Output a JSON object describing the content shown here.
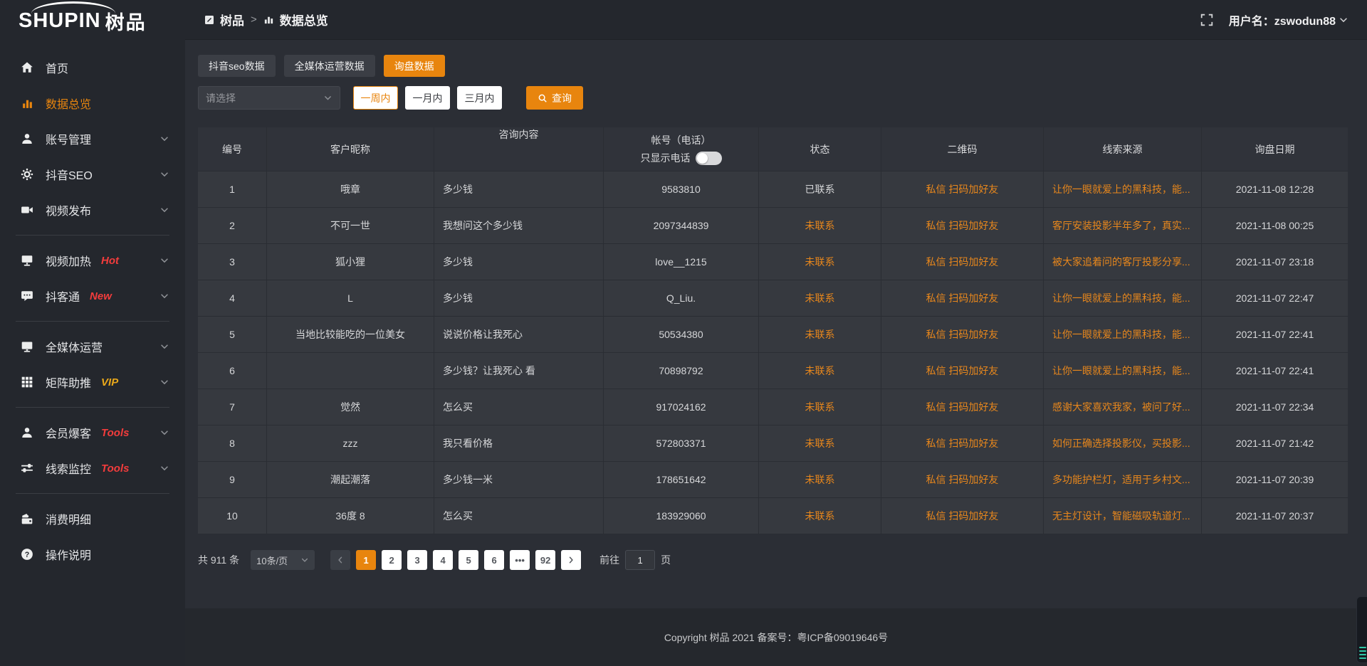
{
  "colors": {
    "accent": "#e8850e",
    "link": "#e8871c",
    "badge_red": "#f23c3c",
    "badge_vip": "#e9a81a",
    "status_pending": "#e8871c",
    "page_bg": "#2b2e35",
    "sidebar_bg": "#24272d",
    "row_bg": "#36393f"
  },
  "brand": {
    "logo_en": "SHUPIN",
    "logo_cn": "树品"
  },
  "header": {
    "breadcrumb": [
      "树品",
      "数据总览"
    ],
    "separator": ">",
    "username": "用户名：zswodun88"
  },
  "sidebar": {
    "items": [
      {
        "label": "首页",
        "icon": "home-icon"
      },
      {
        "label": "数据总览",
        "icon": "chart-bar-icon",
        "active": true
      },
      {
        "label": "账号管理",
        "icon": "user-icon",
        "chevron": true
      },
      {
        "label": "抖音SEO",
        "icon": "gear-icon",
        "chevron": true
      },
      {
        "label": "视频发布",
        "icon": "video-icon",
        "chevron": true,
        "divider_after": true
      },
      {
        "label": "视频加热",
        "icon": "monitor-icon",
        "badge": "Hot",
        "badge_color": "#f23c3c",
        "chevron": true
      },
      {
        "label": "抖客通",
        "icon": "chat-icon",
        "badge": "New",
        "badge_color": "#f23c3c",
        "chevron": true,
        "divider_after": true
      },
      {
        "label": "全媒体运营",
        "icon": "screen-icon",
        "chevron": true
      },
      {
        "label": "矩阵助推",
        "icon": "grid-icon",
        "badge": "VIP",
        "badge_color": "#e9a81a",
        "chevron": true,
        "divider_after": true
      },
      {
        "label": "会员爆客",
        "icon": "member-icon",
        "badge": "Tools",
        "badge_color": "#f23c3c",
        "chevron": true
      },
      {
        "label": "线索监控",
        "icon": "sliders-icon",
        "badge": "Tools",
        "badge_color": "#f23c3c",
        "chevron": true,
        "divider_after": true
      },
      {
        "label": "消费明细",
        "icon": "spend-icon"
      },
      {
        "label": "操作说明",
        "icon": "help-icon"
      }
    ]
  },
  "tabs": [
    {
      "label": "抖音seo数据"
    },
    {
      "label": "全媒体运营数据"
    },
    {
      "label": "询盘数据",
      "active": true
    }
  ],
  "filters": {
    "select_placeholder": "请选择",
    "range_buttons": [
      {
        "label": "一周内",
        "active": true
      },
      {
        "label": "一月内"
      },
      {
        "label": "三月内"
      }
    ],
    "query_label": "查询"
  },
  "table": {
    "headers": [
      "编号",
      "客户昵称",
      "咨询内容",
      "帐号（电话）",
      "状态",
      "二维码",
      "线索来源",
      "询盘日期"
    ],
    "phone_toggle_label": "只显示电话",
    "rows": [
      {
        "id": "1",
        "nickname": "哦章",
        "content": "多少钱",
        "account": "9583810",
        "status": "已联系",
        "qrcode": "私信 扫码加好友",
        "source": "让你一眼就爱上的黑科技，能...",
        "date": "2021-11-08 12:28"
      },
      {
        "id": "2",
        "nickname": "不可一世",
        "content": "我想问这个多少钱",
        "account": "2097344839",
        "status": "未联系",
        "qrcode": "私信 扫码加好友",
        "source": "客厅安装投影半年多了，真实...",
        "date": "2021-11-08 00:25"
      },
      {
        "id": "3",
        "nickname": "狐小狸",
        "content": "多少钱",
        "account": "love__1215",
        "status": "未联系",
        "qrcode": "私信 扫码加好友",
        "source": "被大家追着问的客厅投影分享...",
        "date": "2021-11-07 23:18"
      },
      {
        "id": "4",
        "nickname": "L",
        "content": "多少钱",
        "account": "Q_Liu.",
        "status": "未联系",
        "qrcode": "私信 扫码加好友",
        "source": "让你一眼就爱上的黑科技，能...",
        "date": "2021-11-07 22:47"
      },
      {
        "id": "5",
        "nickname": "当地比较能吃的一位美女",
        "content": "说说价格让我死心",
        "account": "50534380",
        "status": "未联系",
        "qrcode": "私信 扫码加好友",
        "source": "让你一眼就爱上的黑科技，能...",
        "date": "2021-11-07 22:41"
      },
      {
        "id": "6",
        "nickname": "",
        "content": "多少钱？让我死心 看",
        "account": "70898792",
        "status": "未联系",
        "qrcode": "私信 扫码加好友",
        "source": "让你一眼就爱上的黑科技，能...",
        "date": "2021-11-07 22:41"
      },
      {
        "id": "7",
        "nickname": "觉然",
        "content": "怎么买",
        "account": "917024162",
        "status": "未联系",
        "qrcode": "私信 扫码加好友",
        "source": "感谢大家喜欢我家，被问了好...",
        "date": "2021-11-07 22:34"
      },
      {
        "id": "8",
        "nickname": "zzz",
        "content": "我只看价格",
        "account": "572803371",
        "status": "未联系",
        "qrcode": "私信 扫码加好友",
        "source": "如何正确选择投影仪，买投影...",
        "date": "2021-11-07 21:42"
      },
      {
        "id": "9",
        "nickname": "潮起潮落",
        "content": "多少钱一米",
        "account": "178651642",
        "status": "未联系",
        "qrcode": "私信 扫码加好友",
        "source": "多功能护栏灯，适用于乡村文...",
        "date": "2021-11-07 20:39"
      },
      {
        "id": "10",
        "nickname": "36度 8",
        "content": "怎么买",
        "account": "183929060",
        "status": "未联系",
        "qrcode": "私信 扫码加好友",
        "source": "无主灯设计，智能磁吸轨道灯...",
        "date": "2021-11-07 20:37"
      }
    ]
  },
  "pagination": {
    "total_label": "共 911 条",
    "page_size_label": "10条/页",
    "pages": [
      "1",
      "2",
      "3",
      "4",
      "5",
      "6",
      "...",
      "92"
    ],
    "active_page": "1",
    "goto_label": "前往",
    "goto_value": "1",
    "page_suffix": "页"
  },
  "footer": {
    "copyright": "Copyright 树品 2021 备案号：粤ICP备09019646号"
  }
}
